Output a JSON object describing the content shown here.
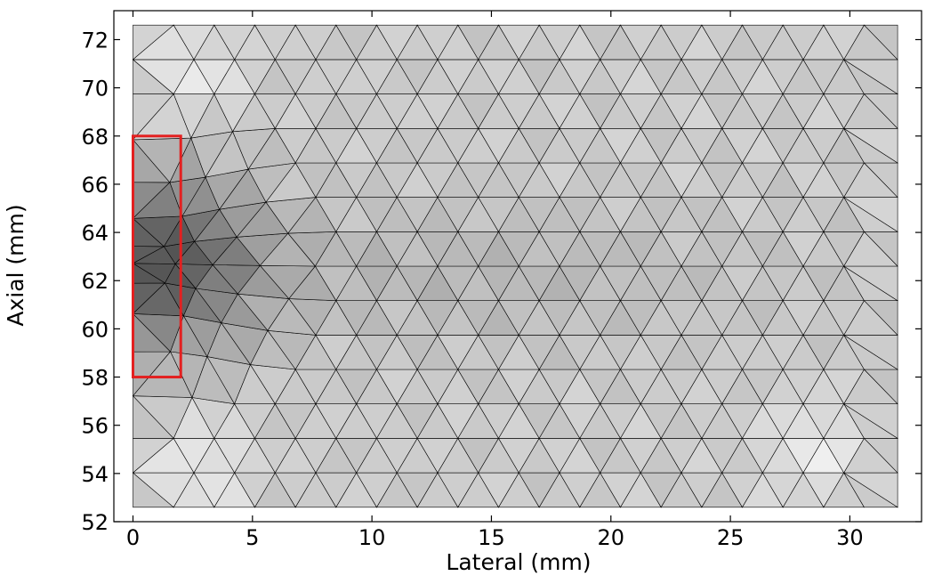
{
  "chart_data": {
    "type": "mesh",
    "title": "",
    "xlabel": "Lateral (mm)",
    "ylabel": "Axial (mm)",
    "xlim": [
      -0.8,
      33
    ],
    "ylim": [
      52,
      73.2
    ],
    "xticks": [
      0,
      5,
      10,
      15,
      20,
      25,
      30
    ],
    "yticks": [
      52,
      54,
      56,
      58,
      60,
      62,
      64,
      66,
      68,
      70,
      72
    ],
    "domain": {
      "x": [
        0,
        32
      ],
      "y": [
        52.6,
        72.6
      ]
    },
    "mesh": {
      "element": "triangle",
      "colormap": "grayscale",
      "refined_center": [
        0.9,
        62.8
      ],
      "refined_radius_mm": 2.0,
      "darkest_region_center": [
        0.9,
        62.8
      ],
      "light_regions_center": [
        [
          2.8,
          54.4
        ],
        [
          28.5,
          55.0
        ],
        [
          2.5,
          70.6
        ]
      ]
    },
    "regions": [
      {
        "shape": "rectangle",
        "x": [
          0,
          2
        ],
        "y": [
          58,
          68
        ],
        "color": "#e32020"
      }
    ],
    "grid": false,
    "colors": {
      "highlight_box": "#e32020",
      "mesh_edge": "#000000"
    }
  }
}
